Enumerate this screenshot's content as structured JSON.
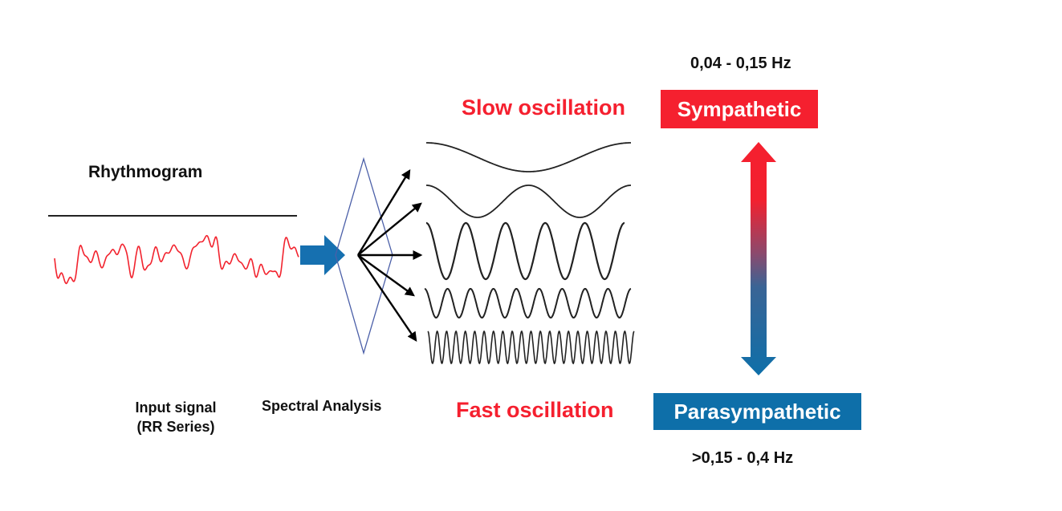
{
  "colors": {
    "red": "#f5202f",
    "blue": "#0e6fa9",
    "signal": "#f2232e",
    "flow_arrow": "#1670b0",
    "spectral_outline": "#4b5fa8",
    "text": "#111111"
  },
  "rhythmogram": {
    "title": "Rhythmogram"
  },
  "input": {
    "line1": "Input signal",
    "line2": "(RR Series)"
  },
  "spectral": {
    "label": "Spectral Analysis"
  },
  "oscillations": {
    "slow_label": "Slow oscillation",
    "fast_label": "Fast oscillation"
  },
  "sympathetic": {
    "label": "Sympathetic",
    "frequency": "0,04 - 0,15 Hz"
  },
  "parasympathetic": {
    "label": "Parasympathetic",
    "frequency": ">0,15 - 0,4 Hz"
  },
  "icons": {
    "flow": "right-arrow-icon",
    "spectrum": "diamond-outline",
    "balance": "double-headed-vertical-arrow"
  }
}
